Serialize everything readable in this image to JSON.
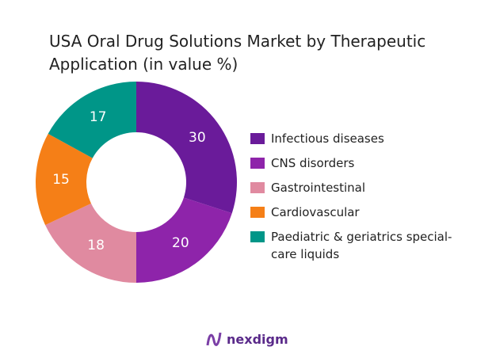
{
  "chart_data": {
    "type": "donut",
    "title": "USA Oral Drug Solutions Market by Therapeutic Application (in value %)",
    "categories": [
      "Infectious diseases",
      "CNS disorders",
      "Gastrointestinal",
      "Cardiovascular",
      "Paediatric & geriatrics special-care liquids"
    ],
    "values": [
      30,
      20,
      18,
      15,
      17
    ],
    "colors": [
      "#6a1b9a",
      "#8e24aa",
      "#e08aa0",
      "#f57f17",
      "#009688"
    ],
    "legend": "right"
  },
  "brand": "nexdigm"
}
